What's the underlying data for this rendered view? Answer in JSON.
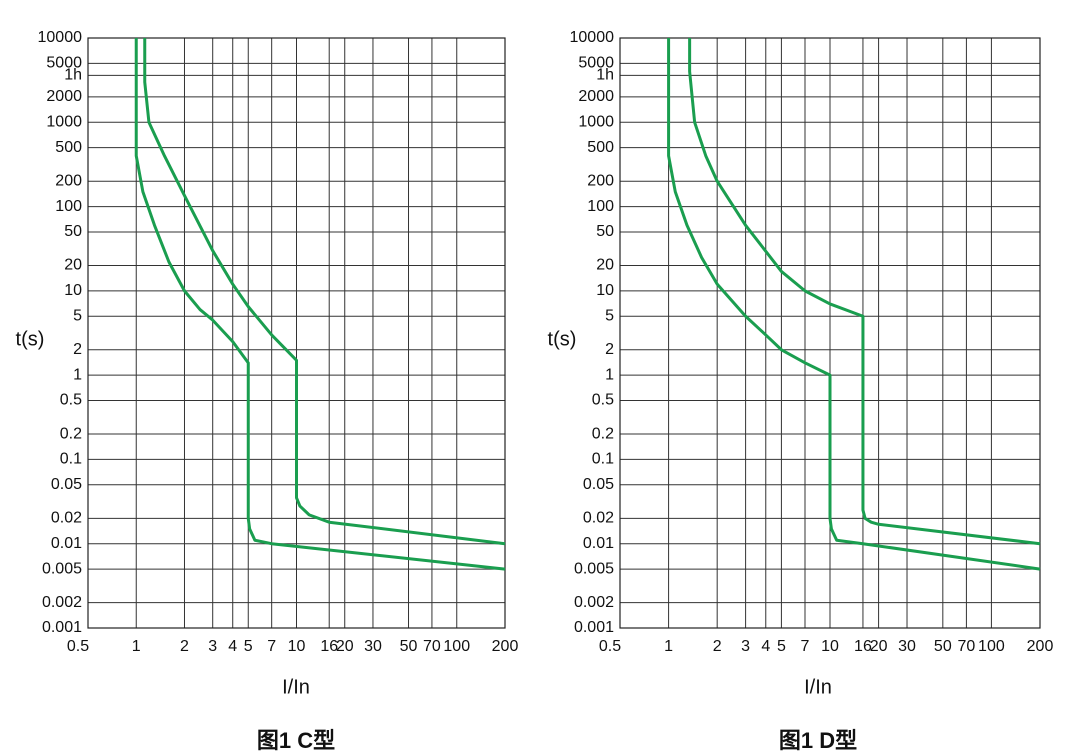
{
  "chart_data": [
    {
      "type": "line",
      "ylabel": "t(s)",
      "xlabel": "I/In",
      "caption": "图1 C型",
      "log_x": true,
      "log_y": true,
      "grid": true,
      "xlim": [
        0.5,
        200
      ],
      "ylim": [
        0.001,
        10000
      ],
      "xticks": [
        0.5,
        1,
        2,
        3,
        4,
        5,
        7,
        10,
        16,
        20,
        30,
        50,
        70,
        100,
        200
      ],
      "yticks": [
        10000,
        5000,
        {
          "value": 3600,
          "label": "1h"
        },
        2000,
        1000,
        500,
        200,
        100,
        50,
        20,
        10,
        5,
        2,
        1,
        0.5,
        0.2,
        0.1,
        0.05,
        0.02,
        0.01,
        0.005,
        0.002,
        0.001
      ],
      "series": [
        {
          "color": "#1a9e4f",
          "x": [
            1,
            1,
            1.1,
            1.3,
            1.6,
            2,
            2.5,
            3,
            4,
            5,
            5,
            5.1,
            5.5,
            7,
            200
          ],
          "values": [
            10000,
            400,
            150,
            60,
            22,
            10,
            6,
            4.5,
            2.5,
            1.4,
            0.02,
            0.015,
            0.011,
            0.01,
            0.005
          ]
        },
        {
          "color": "#1a9e4f",
          "x": [
            1.13,
            1.13,
            1.2,
            1.5,
            2,
            3,
            4,
            5,
            7,
            10,
            10,
            10.5,
            12,
            16,
            200
          ],
          "values": [
            10000,
            3000,
            1000,
            400,
            135,
            30,
            12,
            6.5,
            3,
            1.5,
            0.035,
            0.028,
            0.022,
            0.018,
            0.01
          ]
        }
      ]
    },
    {
      "type": "line",
      "ylabel": "t(s)",
      "xlabel": "I/In",
      "caption": "图1 D型",
      "log_x": true,
      "log_y": true,
      "grid": true,
      "xlim": [
        0.5,
        200
      ],
      "ylim": [
        0.001,
        10000
      ],
      "xticks": [
        0.5,
        1,
        2,
        3,
        4,
        5,
        7,
        10,
        16,
        20,
        30,
        50,
        70,
        100,
        200
      ],
      "yticks": [
        10000,
        5000,
        {
          "value": 3600,
          "label": "1h"
        },
        2000,
        1000,
        500,
        200,
        100,
        50,
        20,
        10,
        5,
        2,
        1,
        0.5,
        0.2,
        0.1,
        0.05,
        0.02,
        0.01,
        0.005,
        0.002,
        0.001
      ],
      "series": [
        {
          "color": "#1a9e4f",
          "x": [
            1,
            1,
            1.1,
            1.3,
            1.6,
            2,
            3,
            4,
            5,
            7,
            10,
            10,
            10.2,
            11,
            16,
            200
          ],
          "values": [
            10000,
            400,
            150,
            60,
            25,
            12,
            5,
            3,
            2,
            1.4,
            1,
            0.02,
            0.015,
            0.011,
            0.01,
            0.005
          ]
        },
        {
          "color": "#1a9e4f",
          "x": [
            1.35,
            1.35,
            1.45,
            1.7,
            2,
            3,
            5,
            7,
            10,
            16,
            16,
            16.5,
            18,
            20,
            200
          ],
          "values": [
            10000,
            4000,
            1000,
            400,
            200,
            60,
            17,
            10,
            7,
            5,
            0.025,
            0.02,
            0.018,
            0.017,
            0.01
          ]
        }
      ]
    }
  ]
}
